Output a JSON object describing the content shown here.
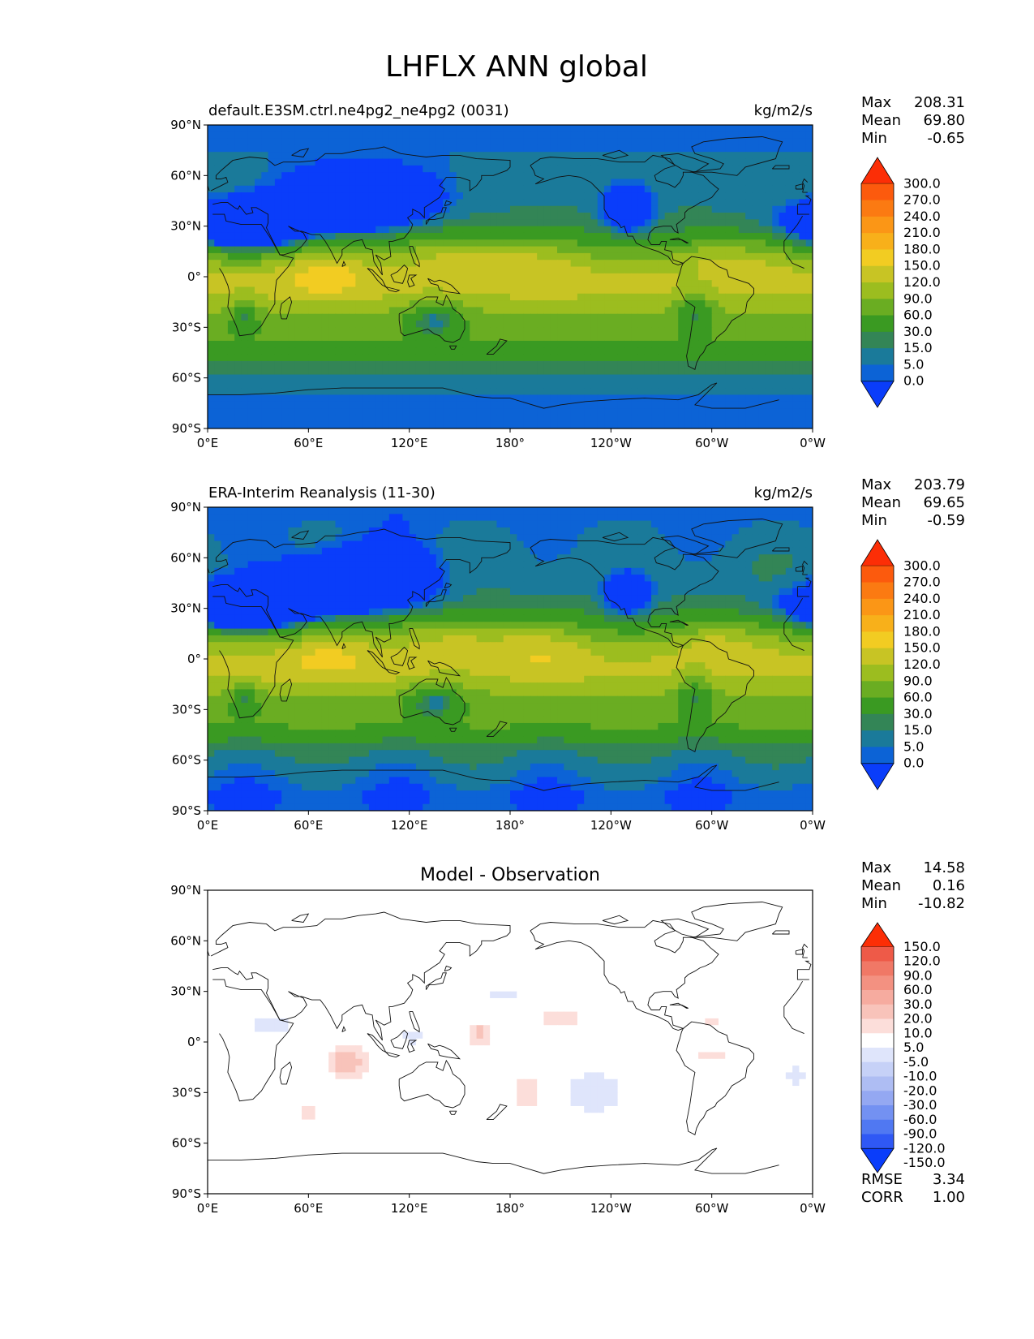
{
  "figure_title": "LHFLX ANN global",
  "colors": {
    "land_outline": "#111111",
    "diff_positive": "#fde3df",
    "diff_positive_strong": "#f7b8ad",
    "diff_negative": "#dde4fb",
    "diff_negative_strong": "#b8c6f2"
  },
  "fill_palette": [
    "#0a3dfa",
    "#0c63d6",
    "#1a7a9a",
    "#338556",
    "#3a9a22",
    "#6aad22",
    "#9cbd1f",
    "#c8c424",
    "#f2cc22",
    "#f8b01a",
    "#fb9616",
    "#fb7a12",
    "#fc5a0d",
    "#fc2e06"
  ],
  "diff_palette": [
    "#0a3dfa",
    "#2f58f5",
    "#5078f2",
    "#7391f2",
    "#94a8f2",
    "#aebdf3",
    "#c6d1f7",
    "#dfe5fb",
    "#ffffff",
    "#fcdeda",
    "#f8c3ba",
    "#f6ab9f",
    "#f39181",
    "#f07866",
    "#ee5a48",
    "#fc2e06"
  ],
  "chart_data": [
    {
      "type": "heatmap",
      "title": "default.E3SM.ctrl.ne4pg2_ne4pg2 (0031)",
      "units": "kg/m2/s",
      "xlabel": "",
      "ylabel": "",
      "x_ticks": [
        "0°E",
        "60°E",
        "120°E",
        "180°",
        "120°W",
        "60°W",
        "0°W"
      ],
      "y_ticks": [
        "90°N",
        "60°N",
        "30°N",
        "0°",
        "30°S",
        "60°S",
        "90°S"
      ],
      "stats": [
        {
          "label": "Max",
          "value": "208.31"
        },
        {
          "label": "Mean",
          "value": "69.80"
        },
        {
          "label": "Min",
          "value": "-0.65"
        }
      ],
      "colorbar_levels": [
        "300.0",
        "270.0",
        "240.0",
        "210.0",
        "180.0",
        "150.0",
        "120.0",
        "90.0",
        "60.0",
        "30.0",
        "15.0",
        "5.0",
        "0.0"
      ],
      "field": "model"
    },
    {
      "type": "heatmap",
      "title": "ERA-Interim Reanalysis (11-30)",
      "units": "kg/m2/s",
      "xlabel": "",
      "ylabel": "",
      "x_ticks": [
        "0°E",
        "60°E",
        "120°E",
        "180°",
        "120°W",
        "60°W",
        "0°W"
      ],
      "y_ticks": [
        "90°N",
        "60°N",
        "30°N",
        "0°",
        "30°S",
        "60°S",
        "90°S"
      ],
      "stats": [
        {
          "label": "Max",
          "value": "203.79"
        },
        {
          "label": "Mean",
          "value": "69.65"
        },
        {
          "label": "Min",
          "value": "-0.59"
        }
      ],
      "colorbar_levels": [
        "300.0",
        "270.0",
        "240.0",
        "210.0",
        "180.0",
        "150.0",
        "120.0",
        "90.0",
        "60.0",
        "30.0",
        "15.0",
        "5.0",
        "0.0"
      ],
      "field": "obs"
    },
    {
      "type": "heatmap",
      "title": "Model - Observation",
      "units": "",
      "xlabel": "",
      "ylabel": "",
      "x_ticks": [
        "0°E",
        "60°E",
        "120°E",
        "180°",
        "120°W",
        "60°W",
        "0°W"
      ],
      "y_ticks": [
        "90°N",
        "60°N",
        "30°N",
        "0°",
        "30°S",
        "60°S",
        "90°S"
      ],
      "stats": [
        {
          "label": "Max",
          "value": "14.58"
        },
        {
          "label": "Mean",
          "value": "0.16"
        },
        {
          "label": "Min",
          "value": "-10.82"
        }
      ],
      "colorbar_levels": [
        "150.0",
        "120.0",
        "90.0",
        "60.0",
        "30.0",
        "20.0",
        "10.0",
        "5.0",
        "-5.0",
        "-10.0",
        "-20.0",
        "-30.0",
        "-60.0",
        "-90.0",
        "-120.0",
        "-150.0"
      ],
      "field": "diff",
      "extra_stats": [
        {
          "label": "RMSE",
          "value": "3.34"
        },
        {
          "label": "CORR",
          "value": "1.00"
        }
      ]
    }
  ]
}
